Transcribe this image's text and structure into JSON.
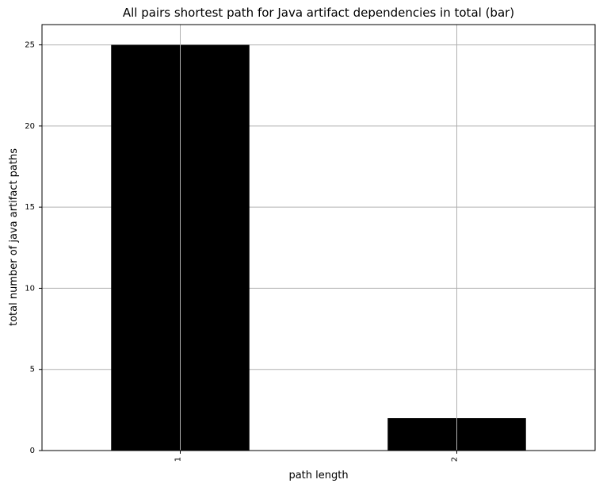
{
  "chart_data": {
    "type": "bar",
    "title": "All pairs shortest path for Java artifact dependencies in total (bar)",
    "xlabel": "path length",
    "ylabel": "total number of java artifact paths",
    "categories": [
      "1",
      "2"
    ],
    "values": [
      25,
      2
    ],
    "ylim": [
      0,
      26.25
    ],
    "yticks": [
      0,
      5,
      10,
      15,
      20,
      25
    ],
    "grid": true,
    "legend": "none",
    "bar_color": "#000000",
    "grid_color": "#b0b0b0"
  }
}
